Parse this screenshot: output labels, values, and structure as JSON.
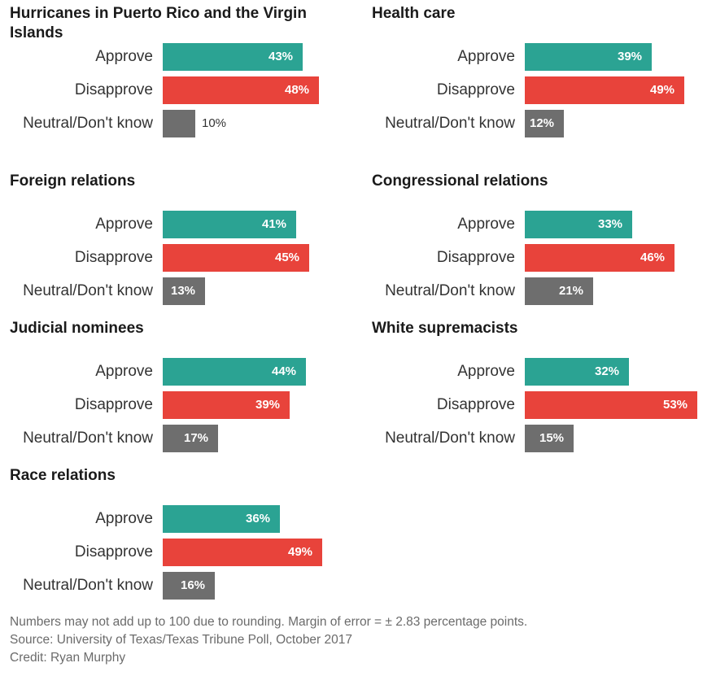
{
  "colors": {
    "approve": "#2ba393",
    "disapprove": "#e8433b",
    "neutral": "#6e6e6e"
  },
  "chart_data": [
    {
      "type": "bar",
      "title": "Hurricanes in Puerto Rico and the Virgin Islands",
      "categories": [
        "Approve",
        "Disapprove",
        "Neutral/Don't know"
      ],
      "values": [
        43,
        48,
        10
      ],
      "value_labels": [
        "43%",
        "48%",
        "10%"
      ]
    },
    {
      "type": "bar",
      "title": "Health care",
      "categories": [
        "Approve",
        "Disapprove",
        "Neutral/Don't know"
      ],
      "values": [
        39,
        49,
        12
      ],
      "value_labels": [
        "39%",
        "49%",
        "12%"
      ]
    },
    {
      "type": "bar",
      "title": "Foreign relations",
      "categories": [
        "Approve",
        "Disapprove",
        "Neutral/Don't know"
      ],
      "values": [
        41,
        45,
        13
      ],
      "value_labels": [
        "41%",
        "45%",
        "13%"
      ]
    },
    {
      "type": "bar",
      "title": "Congressional relations",
      "categories": [
        "Approve",
        "Disapprove",
        "Neutral/Don't know"
      ],
      "values": [
        33,
        46,
        21
      ],
      "value_labels": [
        "33%",
        "46%",
        "21%"
      ]
    },
    {
      "type": "bar",
      "title": "Judicial nominees",
      "categories": [
        "Approve",
        "Disapprove",
        "Neutral/Don't know"
      ],
      "values": [
        44,
        39,
        17
      ],
      "value_labels": [
        "44%",
        "39%",
        "17%"
      ]
    },
    {
      "type": "bar",
      "title": "White supremacists",
      "categories": [
        "Approve",
        "Disapprove",
        "Neutral/Don't know"
      ],
      "values": [
        32,
        53,
        15
      ],
      "value_labels": [
        "32%",
        "53%",
        "15%"
      ]
    },
    {
      "type": "bar",
      "title": "Race relations",
      "categories": [
        "Approve",
        "Disapprove",
        "Neutral/Don't know"
      ],
      "values": [
        36,
        49,
        16
      ],
      "value_labels": [
        "36%",
        "49%",
        "16%"
      ]
    }
  ],
  "footer": {
    "note": "Numbers may not add up to 100 due to rounding. Margin of error = ± 2.83 percentage points.",
    "source": "Source: University of Texas/Texas Tribune Poll, October 2017",
    "credit": "Credit: Ryan Murphy"
  }
}
